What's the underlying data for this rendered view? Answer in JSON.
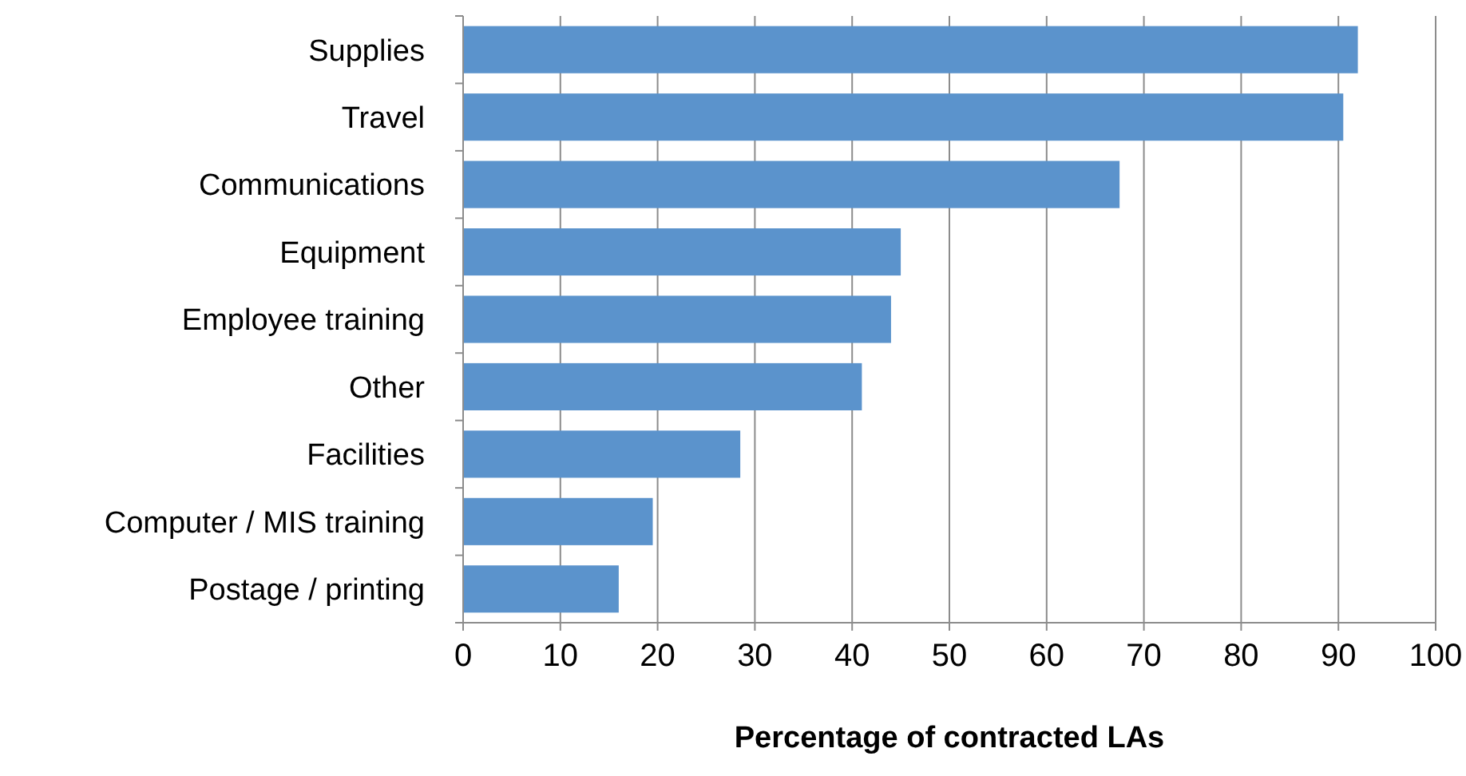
{
  "chart_data": {
    "type": "bar",
    "orientation": "horizontal",
    "xlabel": "Percentage of contracted LAs",
    "categories": [
      "Supplies",
      "Travel",
      "Communications",
      "Equipment",
      "Employee training",
      "Other",
      "Facilities",
      "Computer / MIS training",
      "Postage / printing"
    ],
    "values": [
      92,
      90.5,
      67.5,
      45,
      44,
      41,
      28.5,
      19.5,
      16
    ],
    "color": "#5b93cc",
    "xlim": [
      0,
      100
    ],
    "xticks": [
      0,
      10,
      20,
      30,
      40,
      50,
      60,
      70,
      80,
      90,
      100
    ],
    "grid": "x"
  }
}
